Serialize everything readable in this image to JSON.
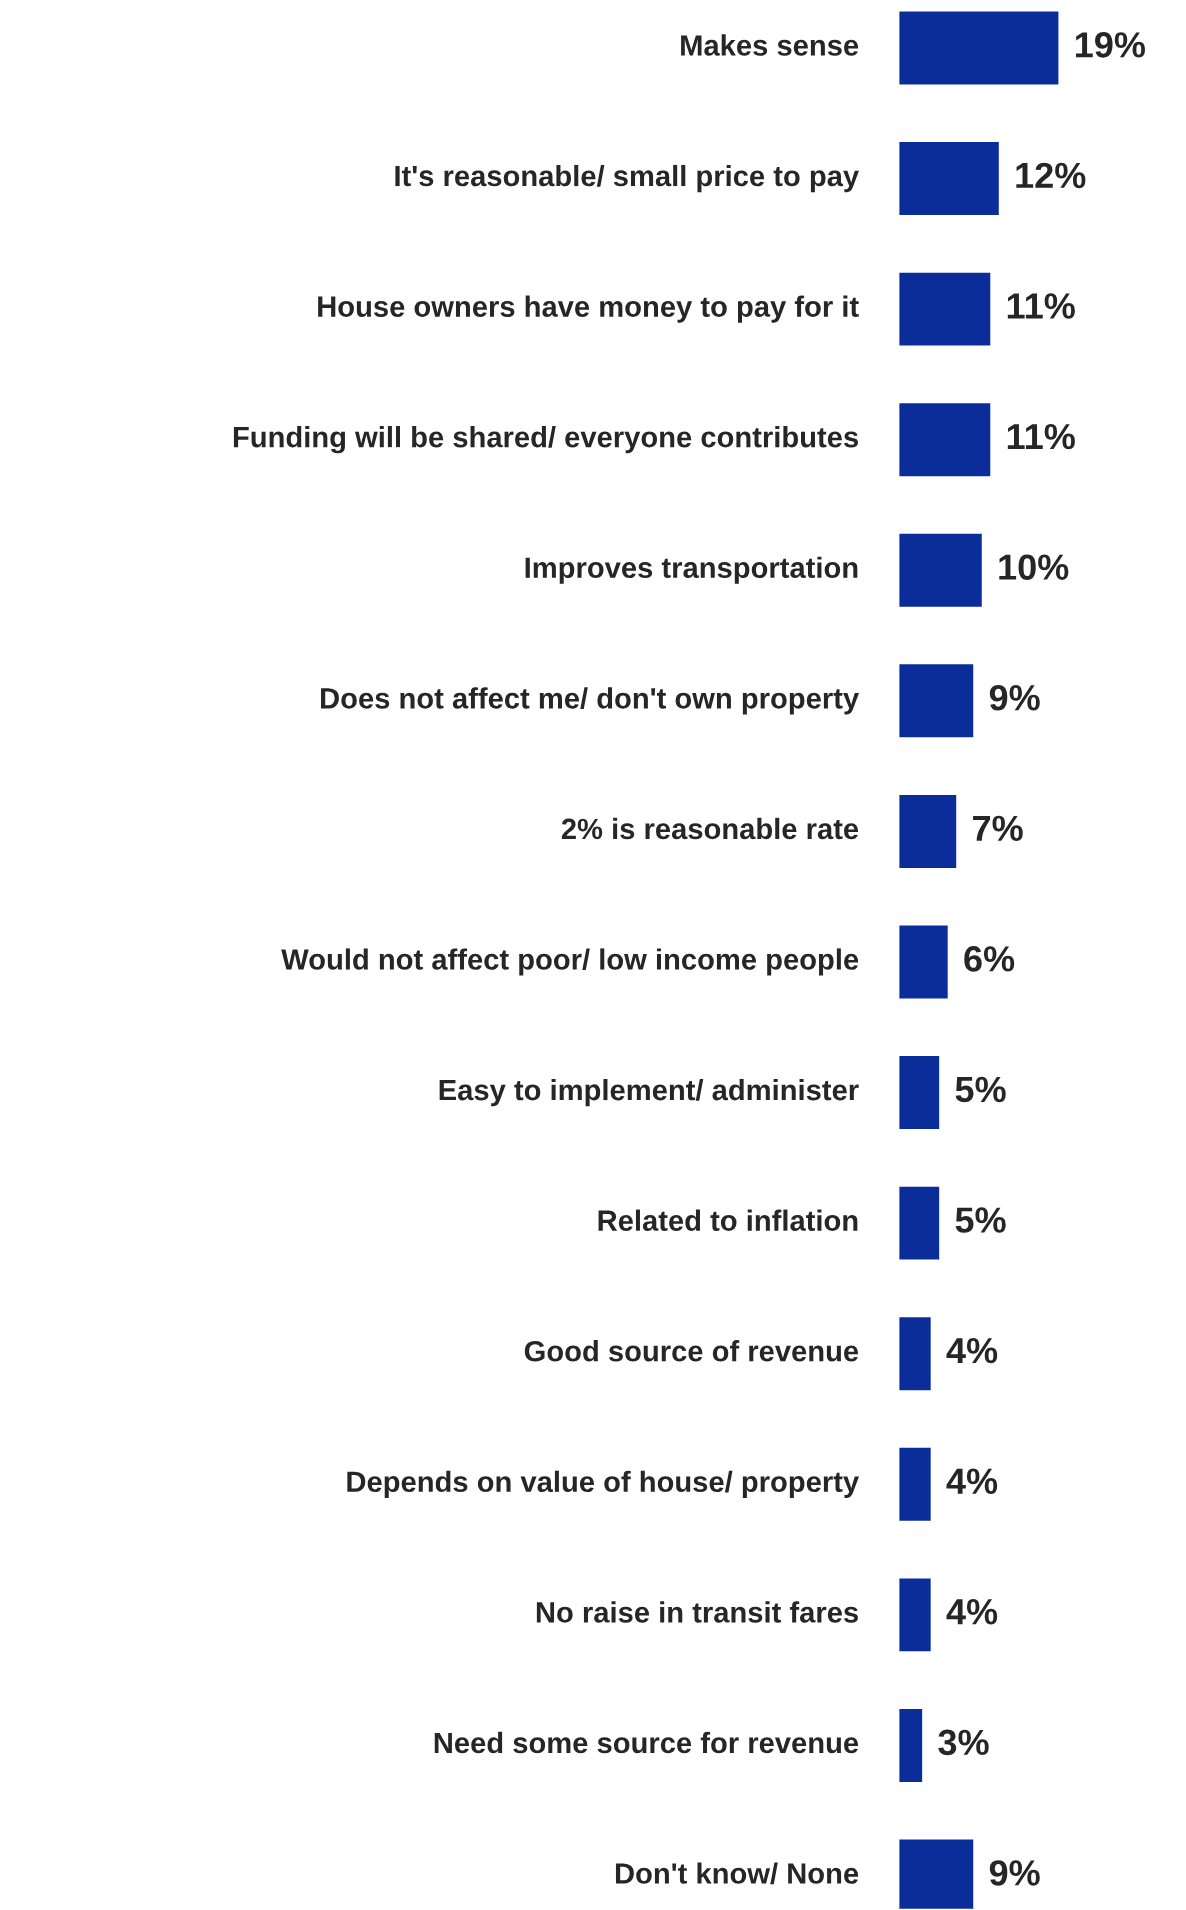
{
  "chart_data": {
    "type": "bar",
    "orientation": "horizontal",
    "categories": [
      "Makes sense",
      "It's reasonable/ small price to pay",
      "House owners have money to pay for it",
      "Funding will be shared/ everyone contributes",
      "Improves transportation",
      "Does not affect me/ don't own property",
      "2% is reasonable rate",
      "Would not affect poor/ low income people",
      "Easy to implement/ administer",
      "Related to inflation",
      "Good source of revenue",
      "Depends on value of house/ property",
      "No raise in transit fares",
      "Need some source for revenue",
      "Don't know/ None"
    ],
    "values": [
      19,
      12,
      11,
      11,
      10,
      9,
      7,
      6,
      5,
      5,
      4,
      4,
      4,
      3,
      9
    ],
    "value_labels": [
      "19%",
      "12%",
      "11%",
      "11%",
      "10%",
      "9%",
      "7%",
      "6%",
      "5%",
      "5%",
      "4%",
      "4%",
      "4%",
      "3%",
      "9%"
    ],
    "color": "#0a2d9a"
  }
}
